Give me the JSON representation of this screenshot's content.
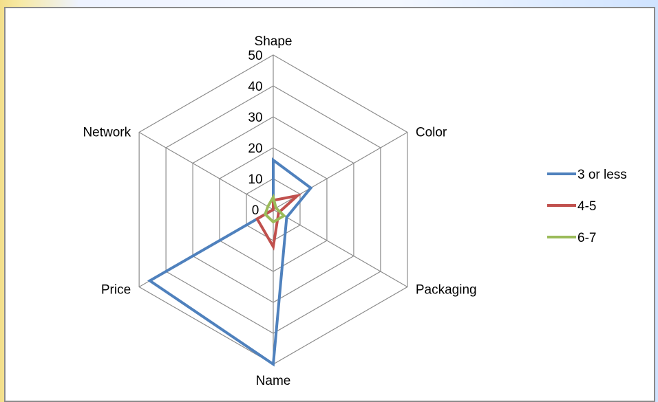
{
  "chart_data": {
    "type": "radar",
    "categories": [
      "Shape",
      "Color",
      "Packaging",
      "Name",
      "Price",
      "Network"
    ],
    "rlim": [
      0,
      50
    ],
    "ticks": [
      "0",
      "10",
      "20",
      "30",
      "40",
      "50"
    ],
    "tick_values": [
      0,
      10,
      20,
      30,
      40,
      50
    ],
    "grid": true,
    "legend_position": "right",
    "series": [
      {
        "name": "3 or less",
        "values": [
          16,
          14,
          5,
          50,
          46,
          0
        ],
        "color": "#4f81bd"
      },
      {
        "name": "4-5",
        "values": [
          3,
          9,
          2,
          12,
          6,
          0
        ],
        "color": "#c0504d"
      },
      {
        "name": "6-7",
        "values": [
          4,
          1,
          4,
          4,
          3,
          2
        ],
        "color": "#9bbb59"
      }
    ]
  }
}
